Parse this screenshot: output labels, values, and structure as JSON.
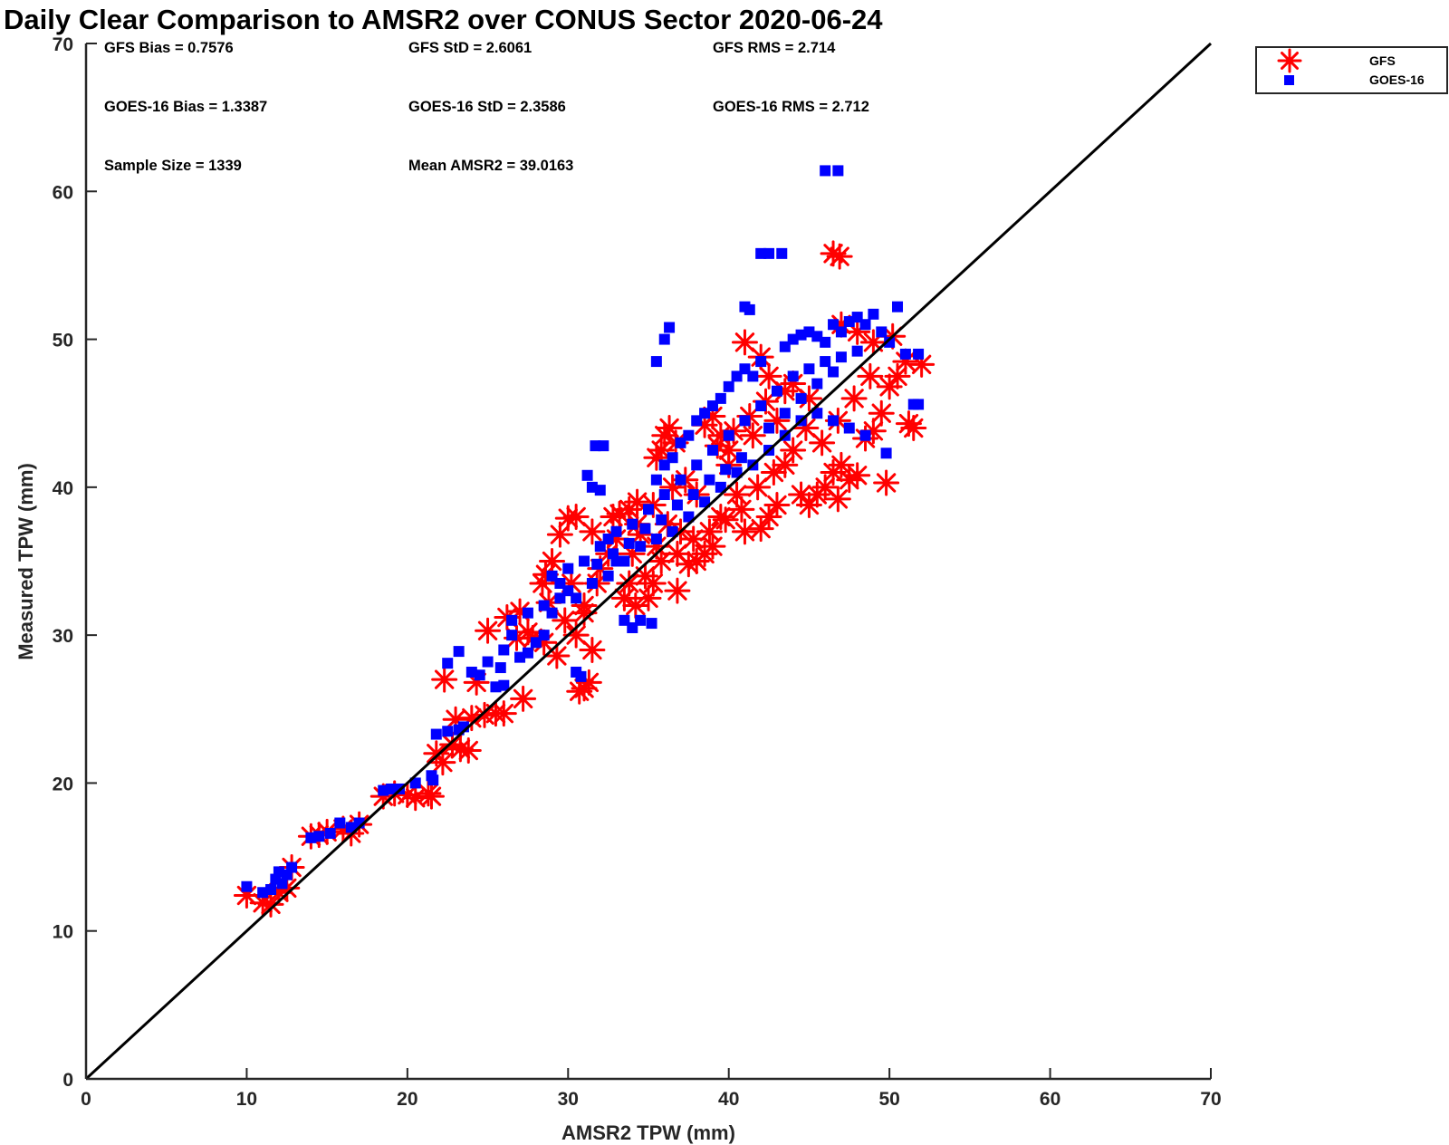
{
  "chart_data": {
    "type": "scatter",
    "title": "Daily Clear Comparison to AMSR2 over CONUS Sector 2020-06-24",
    "xlabel": "AMSR2 TPW (mm)",
    "ylabel": "Measured TPW (mm)",
    "xlim": [
      0,
      70
    ],
    "ylim": [
      0,
      70
    ],
    "xticks": [
      "0",
      "10",
      "20",
      "30",
      "40",
      "50",
      "60",
      "70"
    ],
    "yticks": [
      "0",
      "10",
      "20",
      "30",
      "40",
      "50",
      "60",
      "70"
    ],
    "grid": false,
    "legend": "outside-top-right",
    "reference_line": {
      "x": [
        0,
        70
      ],
      "y": [
        0,
        70
      ]
    },
    "stats": [
      "GFS Bias = 0.7576",
      "GFS StD = 2.6061",
      "GFS RMS = 2.714",
      "GOES-16 Bias = 1.3387",
      "GOES-16 StD = 2.3586",
      "GOES-16 RMS = 2.712",
      "Sample Size = 1339",
      "Mean AMSR2 = 39.0163"
    ],
    "series": [
      {
        "name": "GFS",
        "marker": "asterisk",
        "color": "#ff0000",
        "points": [
          [
            10,
            12.4
          ],
          [
            11,
            11.9
          ],
          [
            11.5,
            11.8
          ],
          [
            12,
            12.6
          ],
          [
            12.5,
            12.9
          ],
          [
            12.8,
            14.3
          ],
          [
            14,
            16.4
          ],
          [
            14.5,
            16.5
          ],
          [
            15,
            16.7
          ],
          [
            16,
            16.9
          ],
          [
            16.5,
            16.6
          ],
          [
            17,
            17.2
          ],
          [
            18.5,
            19.1
          ],
          [
            19.2,
            19.3
          ],
          [
            20,
            19.2
          ],
          [
            20.5,
            19.0
          ],
          [
            21.3,
            19.3
          ],
          [
            21.5,
            19.1
          ],
          [
            21.8,
            22.0
          ],
          [
            22.2,
            21.4
          ],
          [
            22.8,
            22.6
          ],
          [
            23.3,
            22.3
          ],
          [
            23.8,
            22.2
          ],
          [
            23.0,
            24.3
          ],
          [
            24.0,
            24.4
          ],
          [
            24.8,
            24.6
          ],
          [
            25.5,
            24.7
          ],
          [
            26.0,
            24.7
          ],
          [
            27.2,
            25.7
          ],
          [
            22.3,
            27.0
          ],
          [
            24.3,
            26.8
          ],
          [
            25.0,
            30.3
          ],
          [
            26.2,
            31.2
          ],
          [
            27.0,
            31.6
          ],
          [
            27.8,
            29.8
          ],
          [
            28.5,
            29.5
          ],
          [
            28.8,
            32.2
          ],
          [
            28.4,
            33.5
          ],
          [
            28.6,
            34.1
          ],
          [
            29.0,
            35.0
          ],
          [
            29.5,
            36.8
          ],
          [
            30.0,
            37.9
          ],
          [
            30.5,
            38.0
          ],
          [
            29.3,
            28.6
          ],
          [
            30.5,
            30.0
          ],
          [
            31.0,
            26.4
          ],
          [
            30.7,
            26.2
          ],
          [
            31.3,
            26.8
          ],
          [
            31.5,
            29.0
          ],
          [
            31.0,
            31.5
          ],
          [
            31.8,
            33.5
          ],
          [
            32.5,
            35.5
          ],
          [
            33.0,
            36.5
          ],
          [
            33.2,
            38.2
          ],
          [
            33.8,
            38.5
          ],
          [
            34.3,
            37.5
          ],
          [
            34.5,
            36.8
          ],
          [
            33.5,
            32.5
          ],
          [
            34.2,
            32.0
          ],
          [
            35.0,
            32.5
          ],
          [
            35.3,
            33.5
          ],
          [
            35.5,
            42.0
          ],
          [
            36.0,
            43.5
          ],
          [
            36.3,
            44.0
          ],
          [
            36.7,
            43.0
          ],
          [
            35.8,
            42.5
          ],
          [
            36.5,
            40.0
          ],
          [
            36.2,
            37.5
          ],
          [
            36.8,
            33.0
          ],
          [
            37.5,
            34.8
          ],
          [
            38.0,
            35.0
          ],
          [
            38.5,
            35.5
          ],
          [
            39.0,
            36.0
          ],
          [
            39.5,
            38.0
          ],
          [
            38.5,
            44.2
          ],
          [
            39.0,
            44.8
          ],
          [
            39.5,
            43.5
          ],
          [
            40.0,
            41.5
          ],
          [
            40.5,
            39.5
          ],
          [
            41.0,
            37.0
          ],
          [
            42.0,
            37.2
          ],
          [
            42.5,
            38.0
          ],
          [
            43.0,
            38.8
          ],
          [
            41.0,
            49.8
          ],
          [
            42.0,
            48.8
          ],
          [
            42.5,
            47.5
          ],
          [
            43.5,
            41.5
          ],
          [
            44.0,
            42.5
          ],
          [
            44.5,
            39.5
          ],
          [
            45.0,
            38.8
          ],
          [
            45.5,
            39.5
          ],
          [
            46.0,
            40.0
          ],
          [
            46.5,
            41.0
          ],
          [
            46.8,
            39.2
          ],
          [
            47.0,
            41.5
          ],
          [
            47.5,
            40.5
          ],
          [
            48.0,
            40.8
          ],
          [
            48.5,
            43.3
          ],
          [
            49.0,
            43.8
          ],
          [
            49.8,
            40.3
          ],
          [
            49.5,
            45.0
          ],
          [
            50.0,
            46.8
          ],
          [
            50.5,
            47.5
          ],
          [
            51.2,
            44.3
          ],
          [
            51.5,
            44.0
          ],
          [
            51.0,
            48.5
          ],
          [
            52.0,
            48.3
          ],
          [
            50.2,
            50.2
          ],
          [
            49.0,
            49.8
          ],
          [
            48.0,
            50.5
          ],
          [
            47.0,
            51.0
          ],
          [
            46.5,
            55.8
          ],
          [
            46.9,
            55.6
          ],
          [
            44.0,
            47.0
          ],
          [
            45.0,
            46.0
          ],
          [
            43.0,
            44.5
          ],
          [
            41.5,
            43.5
          ],
          [
            40.0,
            42.5
          ],
          [
            38.0,
            39.5
          ],
          [
            37.0,
            37.0
          ],
          [
            35.5,
            36.0
          ],
          [
            34.0,
            35.5
          ],
          [
            32.0,
            34.5
          ],
          [
            31.0,
            32.0
          ],
          [
            30.2,
            33.5
          ],
          [
            29.8,
            31.0
          ],
          [
            27.5,
            30.2
          ],
          [
            26.8,
            29.8
          ],
          [
            44.8,
            44.0
          ],
          [
            45.8,
            43.0
          ],
          [
            46.8,
            44.5
          ],
          [
            47.8,
            46.0
          ],
          [
            48.8,
            47.5
          ],
          [
            42.8,
            41.0
          ],
          [
            41.8,
            40.0
          ],
          [
            40.8,
            38.5
          ],
          [
            39.8,
            37.8
          ],
          [
            38.8,
            37.0
          ],
          [
            37.8,
            36.5
          ],
          [
            36.8,
            35.5
          ],
          [
            35.8,
            35.0
          ],
          [
            34.8,
            34.0
          ],
          [
            33.8,
            33.5
          ],
          [
            43.5,
            46.5
          ],
          [
            42.3,
            45.8
          ],
          [
            41.3,
            44.8
          ],
          [
            40.3,
            43.8
          ],
          [
            39.3,
            42.8
          ],
          [
            37.3,
            40.5
          ],
          [
            35.3,
            38.8
          ],
          [
            34.3,
            39.0
          ],
          [
            32.8,
            38.0
          ],
          [
            31.5,
            37.0
          ]
        ]
      },
      {
        "name": "GOES-16",
        "marker": "square",
        "color": "#0000ff",
        "points": [
          [
            10,
            13.0
          ],
          [
            11,
            12.6
          ],
          [
            11.5,
            12.8
          ],
          [
            11.8,
            13.5
          ],
          [
            12,
            14.0
          ],
          [
            12.2,
            13.2
          ],
          [
            12.5,
            13.8
          ],
          [
            12.8,
            14.3
          ],
          [
            14,
            16.3
          ],
          [
            14.5,
            16.4
          ],
          [
            15.2,
            16.6
          ],
          [
            15.8,
            17.3
          ],
          [
            16.5,
            17.0
          ],
          [
            17,
            17.3
          ],
          [
            18.5,
            19.5
          ],
          [
            19,
            19.6
          ],
          [
            19.5,
            19.6
          ],
          [
            20.5,
            20.0
          ],
          [
            21.5,
            20.5
          ],
          [
            21.6,
            20.2
          ],
          [
            21.8,
            23.3
          ],
          [
            22.5,
            23.5
          ],
          [
            23.2,
            23.6
          ],
          [
            23.5,
            23.8
          ],
          [
            22.5,
            28.1
          ],
          [
            23.2,
            28.9
          ],
          [
            24.0,
            27.5
          ],
          [
            24.5,
            27.3
          ],
          [
            25.0,
            28.2
          ],
          [
            25.5,
            26.5
          ],
          [
            26.0,
            26.6
          ],
          [
            25.8,
            27.8
          ],
          [
            26.0,
            29.0
          ],
          [
            26.5,
            30.0
          ],
          [
            27.0,
            28.5
          ],
          [
            27.5,
            28.8
          ],
          [
            28.0,
            29.5
          ],
          [
            28.5,
            30.0
          ],
          [
            29.0,
            31.5
          ],
          [
            29.5,
            32.5
          ],
          [
            30.0,
            33.0
          ],
          [
            30.5,
            27.5
          ],
          [
            30.8,
            27.2
          ],
          [
            31.2,
            40.8
          ],
          [
            31.5,
            40.0
          ],
          [
            31.7,
            42.8
          ],
          [
            32.2,
            42.8
          ],
          [
            32.0,
            39.8
          ],
          [
            32.5,
            36.5
          ],
          [
            33.0,
            35.0
          ],
          [
            33.5,
            31.0
          ],
          [
            34.0,
            30.5
          ],
          [
            34.5,
            31.0
          ],
          [
            35.2,
            30.8
          ],
          [
            35.5,
            40.5
          ],
          [
            36.0,
            41.5
          ],
          [
            36.5,
            42.0
          ],
          [
            37.0,
            43.0
          ],
          [
            37.5,
            43.5
          ],
          [
            35.5,
            48.5
          ],
          [
            36.0,
            50.0
          ],
          [
            36.3,
            50.8
          ],
          [
            38.0,
            44.5
          ],
          [
            38.5,
            45.0
          ],
          [
            39.0,
            45.5
          ],
          [
            39.5,
            46.0
          ],
          [
            40.0,
            46.8
          ],
          [
            40.5,
            47.5
          ],
          [
            41.0,
            48.0
          ],
          [
            41.5,
            47.5
          ],
          [
            42.0,
            48.5
          ],
          [
            41.0,
            52.2
          ],
          [
            41.3,
            52.0
          ],
          [
            42.0,
            55.8
          ],
          [
            42.5,
            55.8
          ],
          [
            43.3,
            55.8
          ],
          [
            46.0,
            61.4
          ],
          [
            46.8,
            61.4
          ],
          [
            43.5,
            49.5
          ],
          [
            44.0,
            50.0
          ],
          [
            44.5,
            50.3
          ],
          [
            45.0,
            50.5
          ],
          [
            45.5,
            50.2
          ],
          [
            46.0,
            49.8
          ],
          [
            46.5,
            51.0
          ],
          [
            47.0,
            50.5
          ],
          [
            47.5,
            51.2
          ],
          [
            48.0,
            51.5
          ],
          [
            48.5,
            51.0
          ],
          [
            49.0,
            51.7
          ],
          [
            49.5,
            50.5
          ],
          [
            50.0,
            49.8
          ],
          [
            50.5,
            52.2
          ],
          [
            51.0,
            49.0
          ],
          [
            51.8,
            49.0
          ],
          [
            51.5,
            45.6
          ],
          [
            51.8,
            45.6
          ],
          [
            49.8,
            42.3
          ],
          [
            48.5,
            43.5
          ],
          [
            47.5,
            44.0
          ],
          [
            46.5,
            44.5
          ],
          [
            45.5,
            45.0
          ],
          [
            44.5,
            44.5
          ],
          [
            43.5,
            43.5
          ],
          [
            42.5,
            42.5
          ],
          [
            41.5,
            41.5
          ],
          [
            40.5,
            41.0
          ],
          [
            39.5,
            40.0
          ],
          [
            38.5,
            39.0
          ],
          [
            37.5,
            38.0
          ],
          [
            36.5,
            37.0
          ],
          [
            35.5,
            36.5
          ],
          [
            34.5,
            36.0
          ],
          [
            33.5,
            35.0
          ],
          [
            32.5,
            34.0
          ],
          [
            31.5,
            33.5
          ],
          [
            30.5,
            32.5
          ],
          [
            29.5,
            33.5
          ],
          [
            28.5,
            32.0
          ],
          [
            27.5,
            31.5
          ],
          [
            26.5,
            31.0
          ],
          [
            44.0,
            47.5
          ],
          [
            45.0,
            48.0
          ],
          [
            46.0,
            48.5
          ],
          [
            47.0,
            48.8
          ],
          [
            48.0,
            49.2
          ],
          [
            43.0,
            46.5
          ],
          [
            42.0,
            45.5
          ],
          [
            41.0,
            44.5
          ],
          [
            40.0,
            43.5
          ],
          [
            39.0,
            42.5
          ],
          [
            38.0,
            41.5
          ],
          [
            37.0,
            40.5
          ],
          [
            36.0,
            39.5
          ],
          [
            35.0,
            38.5
          ],
          [
            34.0,
            37.5
          ],
          [
            33.0,
            37.0
          ],
          [
            32.0,
            36.0
          ],
          [
            31.0,
            35.0
          ],
          [
            30.0,
            34.5
          ],
          [
            29.0,
            34.0
          ],
          [
            42.5,
            44.0
          ],
          [
            43.5,
            45.0
          ],
          [
            44.5,
            46.0
          ],
          [
            45.5,
            47.0
          ],
          [
            46.5,
            47.8
          ],
          [
            40.8,
            42.0
          ],
          [
            39.8,
            41.2
          ],
          [
            38.8,
            40.5
          ],
          [
            37.8,
            39.5
          ],
          [
            36.8,
            38.8
          ],
          [
            35.8,
            37.8
          ],
          [
            34.8,
            37.2
          ],
          [
            33.8,
            36.2
          ],
          [
            32.8,
            35.5
          ],
          [
            31.8,
            34.8
          ]
        ]
      }
    ]
  }
}
